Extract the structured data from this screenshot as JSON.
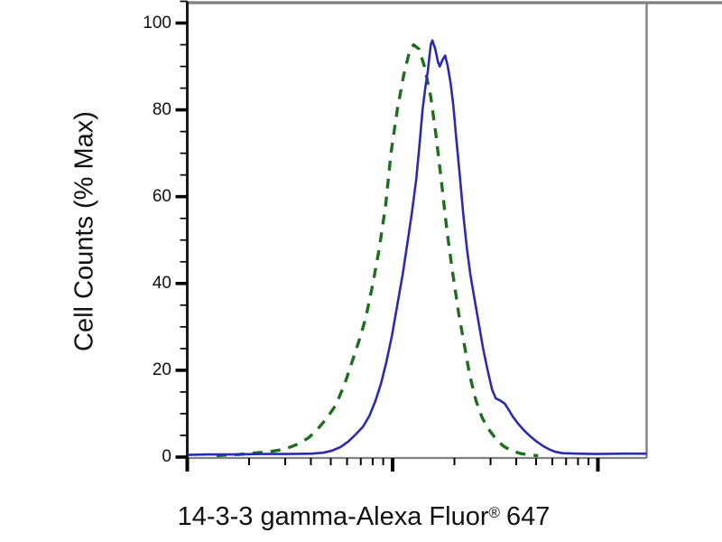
{
  "figure": {
    "background": "#ffffff",
    "y_axis": {
      "title": "Cell Counts (% Max)",
      "tick_labels": [
        "0",
        "20",
        "40",
        "60",
        "80",
        "100"
      ],
      "major_ticks": [
        0,
        20,
        40,
        60,
        80,
        100
      ],
      "minor_tick_step": 5,
      "range": [
        0,
        105
      ]
    },
    "x_axis": {
      "title_prefix": "14-3-3 gamma-Alexa Fluor",
      "title_reg": "®",
      "title_suffix": "647",
      "scale": "log",
      "decade_positions": [
        0,
        1,
        2
      ],
      "range_decades": [
        0,
        2.24
      ]
    }
  },
  "colors": {
    "solid_curve": "#2a2ab2",
    "dashed_curve": "#1e6e1e",
    "axis_left": "#1a1a1a",
    "frame_gray": "#808080",
    "tick_black": "#000000",
    "text": "#111111"
  },
  "chart_data": {
    "type": "line",
    "title": "",
    "xlabel": "14-3-3 gamma-Alexa Fluor® 647 (log fluorescence intensity, unlabeled decades)",
    "ylabel": "Cell Counts (% Max)",
    "ylim": [
      0,
      105
    ],
    "xlim_decades": [
      0,
      2.24
    ],
    "grid": false,
    "legend": "none",
    "series": [
      {
        "name": "dashed-green-histogram",
        "style": "dashed",
        "color": "#1e6e1e",
        "points": [
          [
            0.143,
            0.3
          ],
          [
            0.196,
            0.5
          ],
          [
            0.253,
            0.6
          ],
          [
            0.341,
            1.0
          ],
          [
            0.407,
            1.3
          ],
          [
            0.473,
            1.8
          ],
          [
            0.539,
            3.0
          ],
          [
            0.592,
            4.5
          ],
          [
            0.636,
            6.5
          ],
          [
            0.68,
            9
          ],
          [
            0.724,
            12
          ],
          [
            0.768,
            17
          ],
          [
            0.803,
            22
          ],
          [
            0.838,
            27
          ],
          [
            0.869,
            32
          ],
          [
            0.904,
            40
          ],
          [
            0.935,
            48
          ],
          [
            0.966,
            58
          ],
          [
            0.992,
            70
          ],
          [
            1.023,
            80
          ],
          [
            1.054,
            88
          ],
          [
            1.08,
            93
          ],
          [
            1.102,
            95
          ],
          [
            1.129,
            94
          ],
          [
            1.155,
            90
          ],
          [
            1.186,
            83
          ],
          [
            1.212,
            74
          ],
          [
            1.239,
            63
          ],
          [
            1.265,
            52
          ],
          [
            1.291,
            43
          ],
          [
            1.322,
            33
          ],
          [
            1.349,
            26
          ],
          [
            1.375,
            19
          ],
          [
            1.406,
            13
          ],
          [
            1.437,
            9
          ],
          [
            1.467,
            6.5
          ],
          [
            1.503,
            4.2
          ],
          [
            1.538,
            2.6
          ],
          [
            1.577,
            1.5
          ],
          [
            1.626,
            0.8
          ],
          [
            1.674,
            0.5
          ],
          [
            1.709,
            0.3
          ]
        ]
      },
      {
        "name": "solid-blue-histogram",
        "style": "solid",
        "color": "#2a2ab2",
        "points": [
          [
            0.002,
            0.5
          ],
          [
            0.099,
            0.6
          ],
          [
            0.231,
            0.6
          ],
          [
            0.363,
            0.7
          ],
          [
            0.495,
            0.7
          ],
          [
            0.605,
            0.8
          ],
          [
            0.662,
            1.0
          ],
          [
            0.706,
            1.5
          ],
          [
            0.746,
            2.3
          ],
          [
            0.785,
            3.6
          ],
          [
            0.82,
            5.2
          ],
          [
            0.856,
            7.0
          ],
          [
            0.887,
            9.5
          ],
          [
            0.917,
            13
          ],
          [
            0.944,
            17
          ],
          [
            0.97,
            22
          ],
          [
            0.997,
            28
          ],
          [
            1.023,
            35
          ],
          [
            1.049,
            42
          ],
          [
            1.071,
            49
          ],
          [
            1.093,
            56
          ],
          [
            1.115,
            64
          ],
          [
            1.133,
            73
          ],
          [
            1.146,
            80
          ],
          [
            1.159,
            85
          ],
          [
            1.172,
            89
          ],
          [
            1.186,
            95
          ],
          [
            1.194,
            96
          ],
          [
            1.208,
            94
          ],
          [
            1.221,
            91
          ],
          [
            1.23,
            90
          ],
          [
            1.243,
            91.5
          ],
          [
            1.256,
            92.5
          ],
          [
            1.269,
            90
          ],
          [
            1.283,
            86
          ],
          [
            1.296,
            81
          ],
          [
            1.309,
            74
          ],
          [
            1.327,
            65
          ],
          [
            1.344,
            56
          ],
          [
            1.362,
            48
          ],
          [
            1.379,
            42
          ],
          [
            1.397,
            37
          ],
          [
            1.419,
            31
          ],
          [
            1.441,
            25
          ],
          [
            1.463,
            20
          ],
          [
            1.485,
            15.5
          ],
          [
            1.503,
            13.5
          ],
          [
            1.525,
            13
          ],
          [
            1.547,
            12.3
          ],
          [
            1.564,
            11
          ],
          [
            1.586,
            9.3
          ],
          [
            1.613,
            7.6
          ],
          [
            1.639,
            6.2
          ],
          [
            1.67,
            4.8
          ],
          [
            1.701,
            3.6
          ],
          [
            1.731,
            2.6
          ],
          [
            1.762,
            1.8
          ],
          [
            1.793,
            1.2
          ],
          [
            1.828,
            0.9
          ],
          [
            1.903,
            0.8
          ],
          [
            1.991,
            0.7
          ],
          [
            2.123,
            0.8
          ],
          [
            2.237,
            0.8
          ]
        ]
      }
    ]
  }
}
